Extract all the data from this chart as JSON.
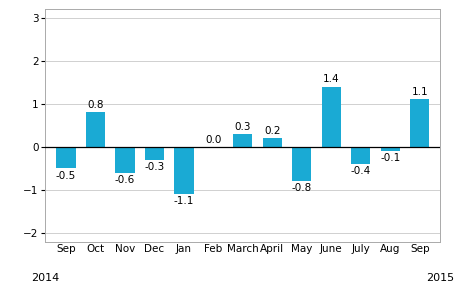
{
  "categories": [
    "Sep",
    "Oct",
    "Nov",
    "Dec",
    "Jan",
    "Feb",
    "March",
    "April",
    "May",
    "June",
    "July",
    "Aug",
    "Sep"
  ],
  "values": [
    -0.5,
    0.8,
    -0.6,
    -0.3,
    -1.1,
    0.0,
    0.3,
    0.2,
    -0.8,
    1.4,
    -0.4,
    -0.1,
    1.1
  ],
  "bar_color": "#1aaad4",
  "ylim": [
    -2.2,
    3.2
  ],
  "yticks": [
    -2,
    -1,
    0,
    1,
    2,
    3
  ],
  "label_fontsize": 7.5,
  "value_fontsize": 7.5,
  "year_fontsize": 8,
  "background_color": "#ffffff",
  "grid_color": "#d0d0d0",
  "border_color": "#aaaaaa"
}
